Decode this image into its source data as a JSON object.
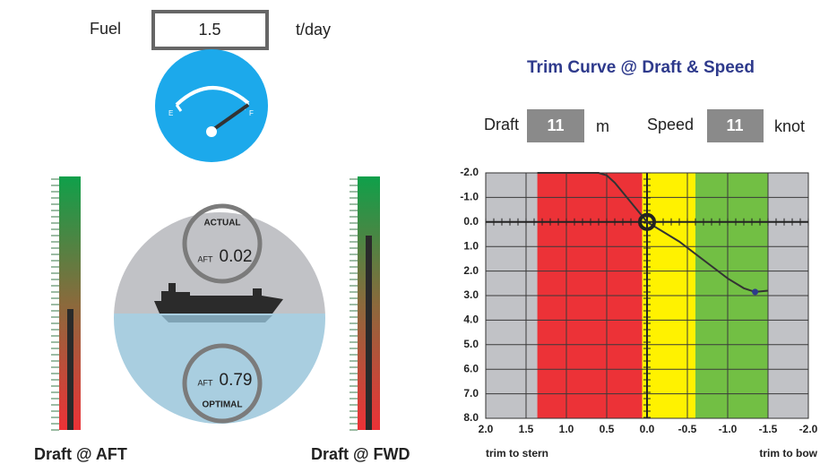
{
  "fuel": {
    "label": "Fuel",
    "value": "1.5",
    "unit": "t/day"
  },
  "gauge": {
    "empty": "E",
    "full": "F"
  },
  "draft_aft": {
    "label": "Draft @ AFT"
  },
  "draft_fwd": {
    "label": "Draft @ FWD"
  },
  "trim_display": {
    "actual": {
      "title": "ACTUAL",
      "prefix": "AFT",
      "value": "0.02"
    },
    "optimal": {
      "title": "OPTIMAL",
      "prefix": "AFT",
      "value": "0.79"
    }
  },
  "controls": {
    "draft_label": "Draft",
    "draft_value": "11",
    "draft_unit": "m",
    "speed_label": "Speed",
    "speed_value": "11",
    "speed_unit": "knot"
  },
  "chart_data": {
    "type": "line",
    "title": "Trim Curve @ Draft & Speed",
    "xlim": [
      2,
      -2
    ],
    "ylim": [
      -2,
      8
    ],
    "y_inverted": true,
    "grid": true,
    "xticks": [
      {
        "value": 2,
        "label": "2.0"
      },
      1.5,
      {
        "value": 1,
        "label": "1.0"
      },
      0.5,
      {
        "value": 0,
        "label": "0.0"
      },
      -0.5,
      {
        "value": -1,
        "label": "-1.0"
      },
      -1.5,
      {
        "value": -2,
        "label": "-2.0"
      }
    ],
    "yticks": [
      {
        "value": -2,
        "label": "-2.0"
      },
      {
        "value": -1,
        "label": "-1.0"
      },
      {
        "value": 0,
        "label": "0.0"
      },
      {
        "value": 1,
        "label": "1.0"
      },
      {
        "value": 2,
        "label": "2.0"
      },
      {
        "value": 3,
        "label": "3.0"
      },
      {
        "value": 4,
        "label": "4.0"
      },
      {
        "value": 5,
        "label": "5.0"
      },
      {
        "value": 6,
        "label": "6.0"
      },
      {
        "value": 7,
        "label": "7.0"
      },
      {
        "value": 8,
        "label": "8.0"
      }
    ],
    "background": "#c1c2c6",
    "zones": [
      {
        "from": 1.36,
        "to": 0.06,
        "color": "#ec3237"
      },
      {
        "from": 0.06,
        "to": -0.6,
        "color": "#fff200"
      },
      {
        "from": -0.6,
        "to": -1.5,
        "color": "#72bf44"
      }
    ],
    "curve": {
      "x": [
        1.36,
        1.0,
        0.6,
        0.5,
        0.4,
        0.3,
        0.2,
        0.1,
        0,
        -0.2,
        -0.4,
        -0.6,
        -0.8,
        -1.0,
        -1.2,
        -1.34,
        -1.5
      ],
      "y": [
        -2.0,
        -2.0,
        -2.0,
        -1.9,
        -1.6,
        -1.2,
        -0.8,
        -0.4,
        0,
        0.4,
        0.8,
        1.3,
        1.8,
        2.3,
        2.7,
        2.85,
        2.8
      ],
      "color": "#333333"
    },
    "point": {
      "x": -1.34,
      "y": 2.85,
      "color": "#2e3a8c"
    },
    "current": {
      "x": 0,
      "y": 0
    },
    "xlabel_left": "trim to stern",
    "xlabel_right": "trim to bow"
  }
}
